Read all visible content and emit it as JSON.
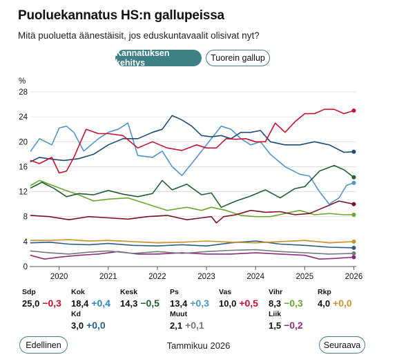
{
  "header": {
    "title": "Puoluekannatus HS:n gallupeissa",
    "subtitle": "Mitä puoluetta äänestäisit, jos eduskuntavaalit olisivat nyt?"
  },
  "tabs": [
    {
      "label": "Kannatuksen kehitys",
      "active": true
    },
    {
      "label": "Tuorein gallup",
      "active": false
    }
  ],
  "chart_data": {
    "type": "line",
    "y_unit_label": "%",
    "ylim": [
      0,
      28
    ],
    "y_ticks": [
      0,
      4,
      8,
      12,
      16,
      20,
      24,
      28
    ],
    "xlim": [
      2019.4,
      2026.05
    ],
    "x_ticks": [
      2020,
      2021,
      2022,
      2023,
      2024,
      2025,
      2026
    ],
    "x_tick_labels": [
      "2020",
      "2021",
      "2022",
      "2023",
      "2024",
      "2025",
      "2026"
    ],
    "grid": true,
    "series": [
      {
        "name": "Sdp",
        "color": "#c8102e",
        "x": [
          2019.42,
          2019.6,
          2019.85,
          2020.0,
          2020.15,
          2020.3,
          2020.55,
          2020.8,
          2021.0,
          2021.3,
          2021.6,
          2021.9,
          2022.2,
          2022.5,
          2022.8,
          2023.0,
          2023.2,
          2023.4,
          2023.6,
          2023.8,
          2024.0,
          2024.2,
          2024.4,
          2024.6,
          2024.8,
          2025.0,
          2025.2,
          2025.4,
          2025.6,
          2025.8,
          2026.0
        ],
        "y": [
          17,
          16.5,
          17.5,
          15,
          15.3,
          17.5,
          22,
          21.3,
          21.3,
          21,
          19,
          20,
          19,
          18.6,
          19.5,
          19,
          19,
          20.5,
          20.4,
          20.5,
          20,
          20,
          23,
          21.5,
          23.2,
          24.5,
          24.5,
          25.2,
          25.2,
          24.5,
          25.0
        ]
      },
      {
        "name": "Kok",
        "color": "#1c4b73",
        "x": [
          2019.42,
          2019.6,
          2019.85,
          2020.1,
          2020.4,
          2020.7,
          2021.0,
          2021.3,
          2021.6,
          2021.9,
          2022.1,
          2022.3,
          2022.5,
          2022.7,
          2022.9,
          2023.1,
          2023.3,
          2023.5,
          2023.7,
          2023.9,
          2024.1,
          2024.3,
          2024.6,
          2024.9,
          2025.2,
          2025.5,
          2025.8,
          2026.0
        ],
        "y": [
          16.8,
          17.5,
          17.2,
          17,
          17.3,
          18,
          19.5,
          20.5,
          20.5,
          21.5,
          22,
          24.2,
          23.5,
          22.5,
          21,
          20.8,
          21,
          20.5,
          21.5,
          21.5,
          21.8,
          20,
          19.5,
          19.5,
          20,
          19.5,
          18.3,
          18.4
        ]
      },
      {
        "name": "Kesk",
        "color": "#1f5e2e",
        "x": [
          2019.42,
          2019.65,
          2019.9,
          2020.15,
          2020.4,
          2020.7,
          2021.0,
          2021.3,
          2021.6,
          2021.9,
          2022.1,
          2022.3,
          2022.6,
          2022.9,
          2023.1,
          2023.3,
          2023.6,
          2023.9,
          2024.2,
          2024.5,
          2024.8,
          2025.0,
          2025.3,
          2025.6,
          2025.8,
          2026.0
        ],
        "y": [
          12.6,
          13.5,
          12.5,
          11.2,
          11.7,
          11.5,
          12.2,
          11.6,
          11.2,
          11.7,
          13.8,
          12.3,
          13.2,
          11.5,
          11.8,
          9.5,
          10.5,
          11.3,
          12.3,
          11,
          12.5,
          12.8,
          15.3,
          16.2,
          15.5,
          14.3
        ]
      },
      {
        "name": "Ps",
        "color": "#4d94cc",
        "x": [
          2019.42,
          2019.6,
          2019.85,
          2020.0,
          2020.15,
          2020.3,
          2020.5,
          2020.8,
          2021.0,
          2021.2,
          2021.4,
          2021.6,
          2021.9,
          2022.1,
          2022.3,
          2022.5,
          2022.7,
          2022.9,
          2023.1,
          2023.3,
          2023.5,
          2023.7,
          2023.9,
          2024.1,
          2024.3,
          2024.6,
          2024.9,
          2025.1,
          2025.3,
          2025.5,
          2025.7,
          2025.85,
          2026.0
        ],
        "y": [
          18.5,
          20.5,
          19.5,
          22.2,
          22.5,
          21.5,
          18.5,
          20.5,
          21.5,
          22,
          23,
          17.8,
          17.5,
          18.5,
          16,
          14.6,
          16.5,
          18.5,
          20.5,
          22.5,
          22,
          20.5,
          19.5,
          20,
          18,
          16,
          14.8,
          14.5,
          12,
          10,
          11,
          13,
          13.4
        ]
      },
      {
        "name": "Vas",
        "color": "#7a1020",
        "x": [
          2019.42,
          2019.8,
          2020.2,
          2020.6,
          2021.0,
          2021.4,
          2021.8,
          2022.2,
          2022.6,
          2022.9,
          2023.1,
          2023.2,
          2023.35,
          2023.6,
          2023.9,
          2024.2,
          2024.5,
          2024.8,
          2025.1,
          2025.4,
          2025.7,
          2026.0
        ],
        "y": [
          8.2,
          8,
          7.5,
          8,
          7.8,
          7.6,
          8,
          8.2,
          7.5,
          7.8,
          8,
          7,
          8,
          8.3,
          9,
          8.7,
          8.8,
          8.3,
          8.5,
          9.5,
          10.5,
          10.0
        ]
      },
      {
        "name": "Vihr",
        "color": "#6aa630",
        "x": [
          2019.42,
          2019.6,
          2019.8,
          2020.1,
          2020.4,
          2020.7,
          2021.0,
          2021.4,
          2021.8,
          2022.2,
          2022.6,
          2022.9,
          2023.1,
          2023.4,
          2023.7,
          2024.0,
          2024.3,
          2024.6,
          2024.9,
          2025.2,
          2025.5,
          2025.8,
          2026.0
        ],
        "y": [
          13,
          13.8,
          13.2,
          12.3,
          11.5,
          10.5,
          10.8,
          11,
          10,
          9,
          9.5,
          9,
          9.5,
          9,
          8.2,
          8,
          8,
          8.5,
          9,
          8.3,
          8.5,
          8.3,
          8.3
        ]
      },
      {
        "name": "Rkp",
        "color": "#c9922a",
        "x": [
          2019.42,
          2019.8,
          2020.2,
          2020.6,
          2021.0,
          2021.5,
          2022.0,
          2022.5,
          2023.0,
          2023.5,
          2024.0,
          2024.5,
          2025.0,
          2025.5,
          2026.0
        ],
        "y": [
          4.2,
          4.2,
          4.3,
          4.1,
          4.2,
          4,
          3.8,
          3.9,
          4.1,
          3.9,
          3.8,
          4,
          4.2,
          3.8,
          4.0
        ]
      },
      {
        "name": "Kd",
        "color": "#2b5c88",
        "x": [
          2019.42,
          2019.8,
          2020.2,
          2020.6,
          2021.0,
          2021.5,
          2022.0,
          2022.5,
          2023.0,
          2023.5,
          2024.0,
          2024.5,
          2025.0,
          2025.5,
          2026.0
        ],
        "y": [
          3.8,
          3.9,
          3.6,
          3.5,
          3.7,
          3.4,
          3.3,
          3.5,
          3.3,
          3.8,
          4.1,
          3.6,
          3.4,
          3.1,
          3.0
        ]
      },
      {
        "name": "Muut",
        "color": "#777777",
        "x": [
          2019.42,
          2019.8,
          2020.2,
          2020.6,
          2021.0,
          2021.5,
          2022.0,
          2022.5,
          2023.0,
          2023.5,
          2024.0,
          2024.5,
          2025.0,
          2025.5,
          2026.0
        ],
        "y": [
          2.5,
          2.2,
          2,
          2.3,
          2.5,
          2.1,
          2.4,
          2.1,
          2.4,
          2.6,
          2.7,
          2.4,
          2.2,
          2,
          2.1
        ]
      },
      {
        "name": "Liik",
        "color": "#8b2c7e",
        "x": [
          2019.42,
          2019.7,
          2020.0,
          2020.4,
          2020.8,
          2021.2,
          2021.6,
          2022.0,
          2022.5,
          2023.0,
          2023.5,
          2024.0,
          2024.5,
          2025.0,
          2025.3,
          2025.6,
          2026.0
        ],
        "y": [
          1.8,
          1.2,
          1.5,
          1.8,
          2,
          2.4,
          2,
          2,
          2.2,
          2,
          2,
          2.2,
          2,
          1.8,
          1.2,
          1.3,
          1.5
        ]
      }
    ]
  },
  "legend": [
    {
      "name": "Sdp",
      "value": "25,0",
      "change": "−0,3",
      "change_color": "#c8102e"
    },
    {
      "name": "Kok",
      "value": "18,4",
      "change": "+0,4",
      "change_color": "#2a86c9"
    },
    {
      "name": "Kesk",
      "value": "14,3",
      "change": "−0,5",
      "change_color": "#1f5e2e"
    },
    {
      "name": "Ps",
      "value": "13,4",
      "change": "+0,3",
      "change_color": "#4d94cc"
    },
    {
      "name": "Vas",
      "value": "10,0",
      "change": "+0,5",
      "change_color": "#c8102e"
    },
    {
      "name": "Vihr",
      "value": "8,3",
      "change": "−0,3",
      "change_color": "#6aa630"
    },
    {
      "name": "Rkp",
      "value": "4,0",
      "change": "+0,0",
      "change_color": "#c9922a"
    },
    {
      "name": "Kd",
      "value": "3,0",
      "change": "+0,0",
      "change_color": "#2b5c88"
    },
    {
      "name": "Muut",
      "value": "2,1",
      "change": "+0,1",
      "change_color": "#777777"
    },
    {
      "name": "Liik",
      "value": "1,5",
      "change": "−0,2",
      "change_color": "#8b2c7e"
    }
  ],
  "nav": {
    "prev_label": "Edellinen",
    "period": "Tammikuu 2026",
    "next_label": "Seuraava"
  }
}
